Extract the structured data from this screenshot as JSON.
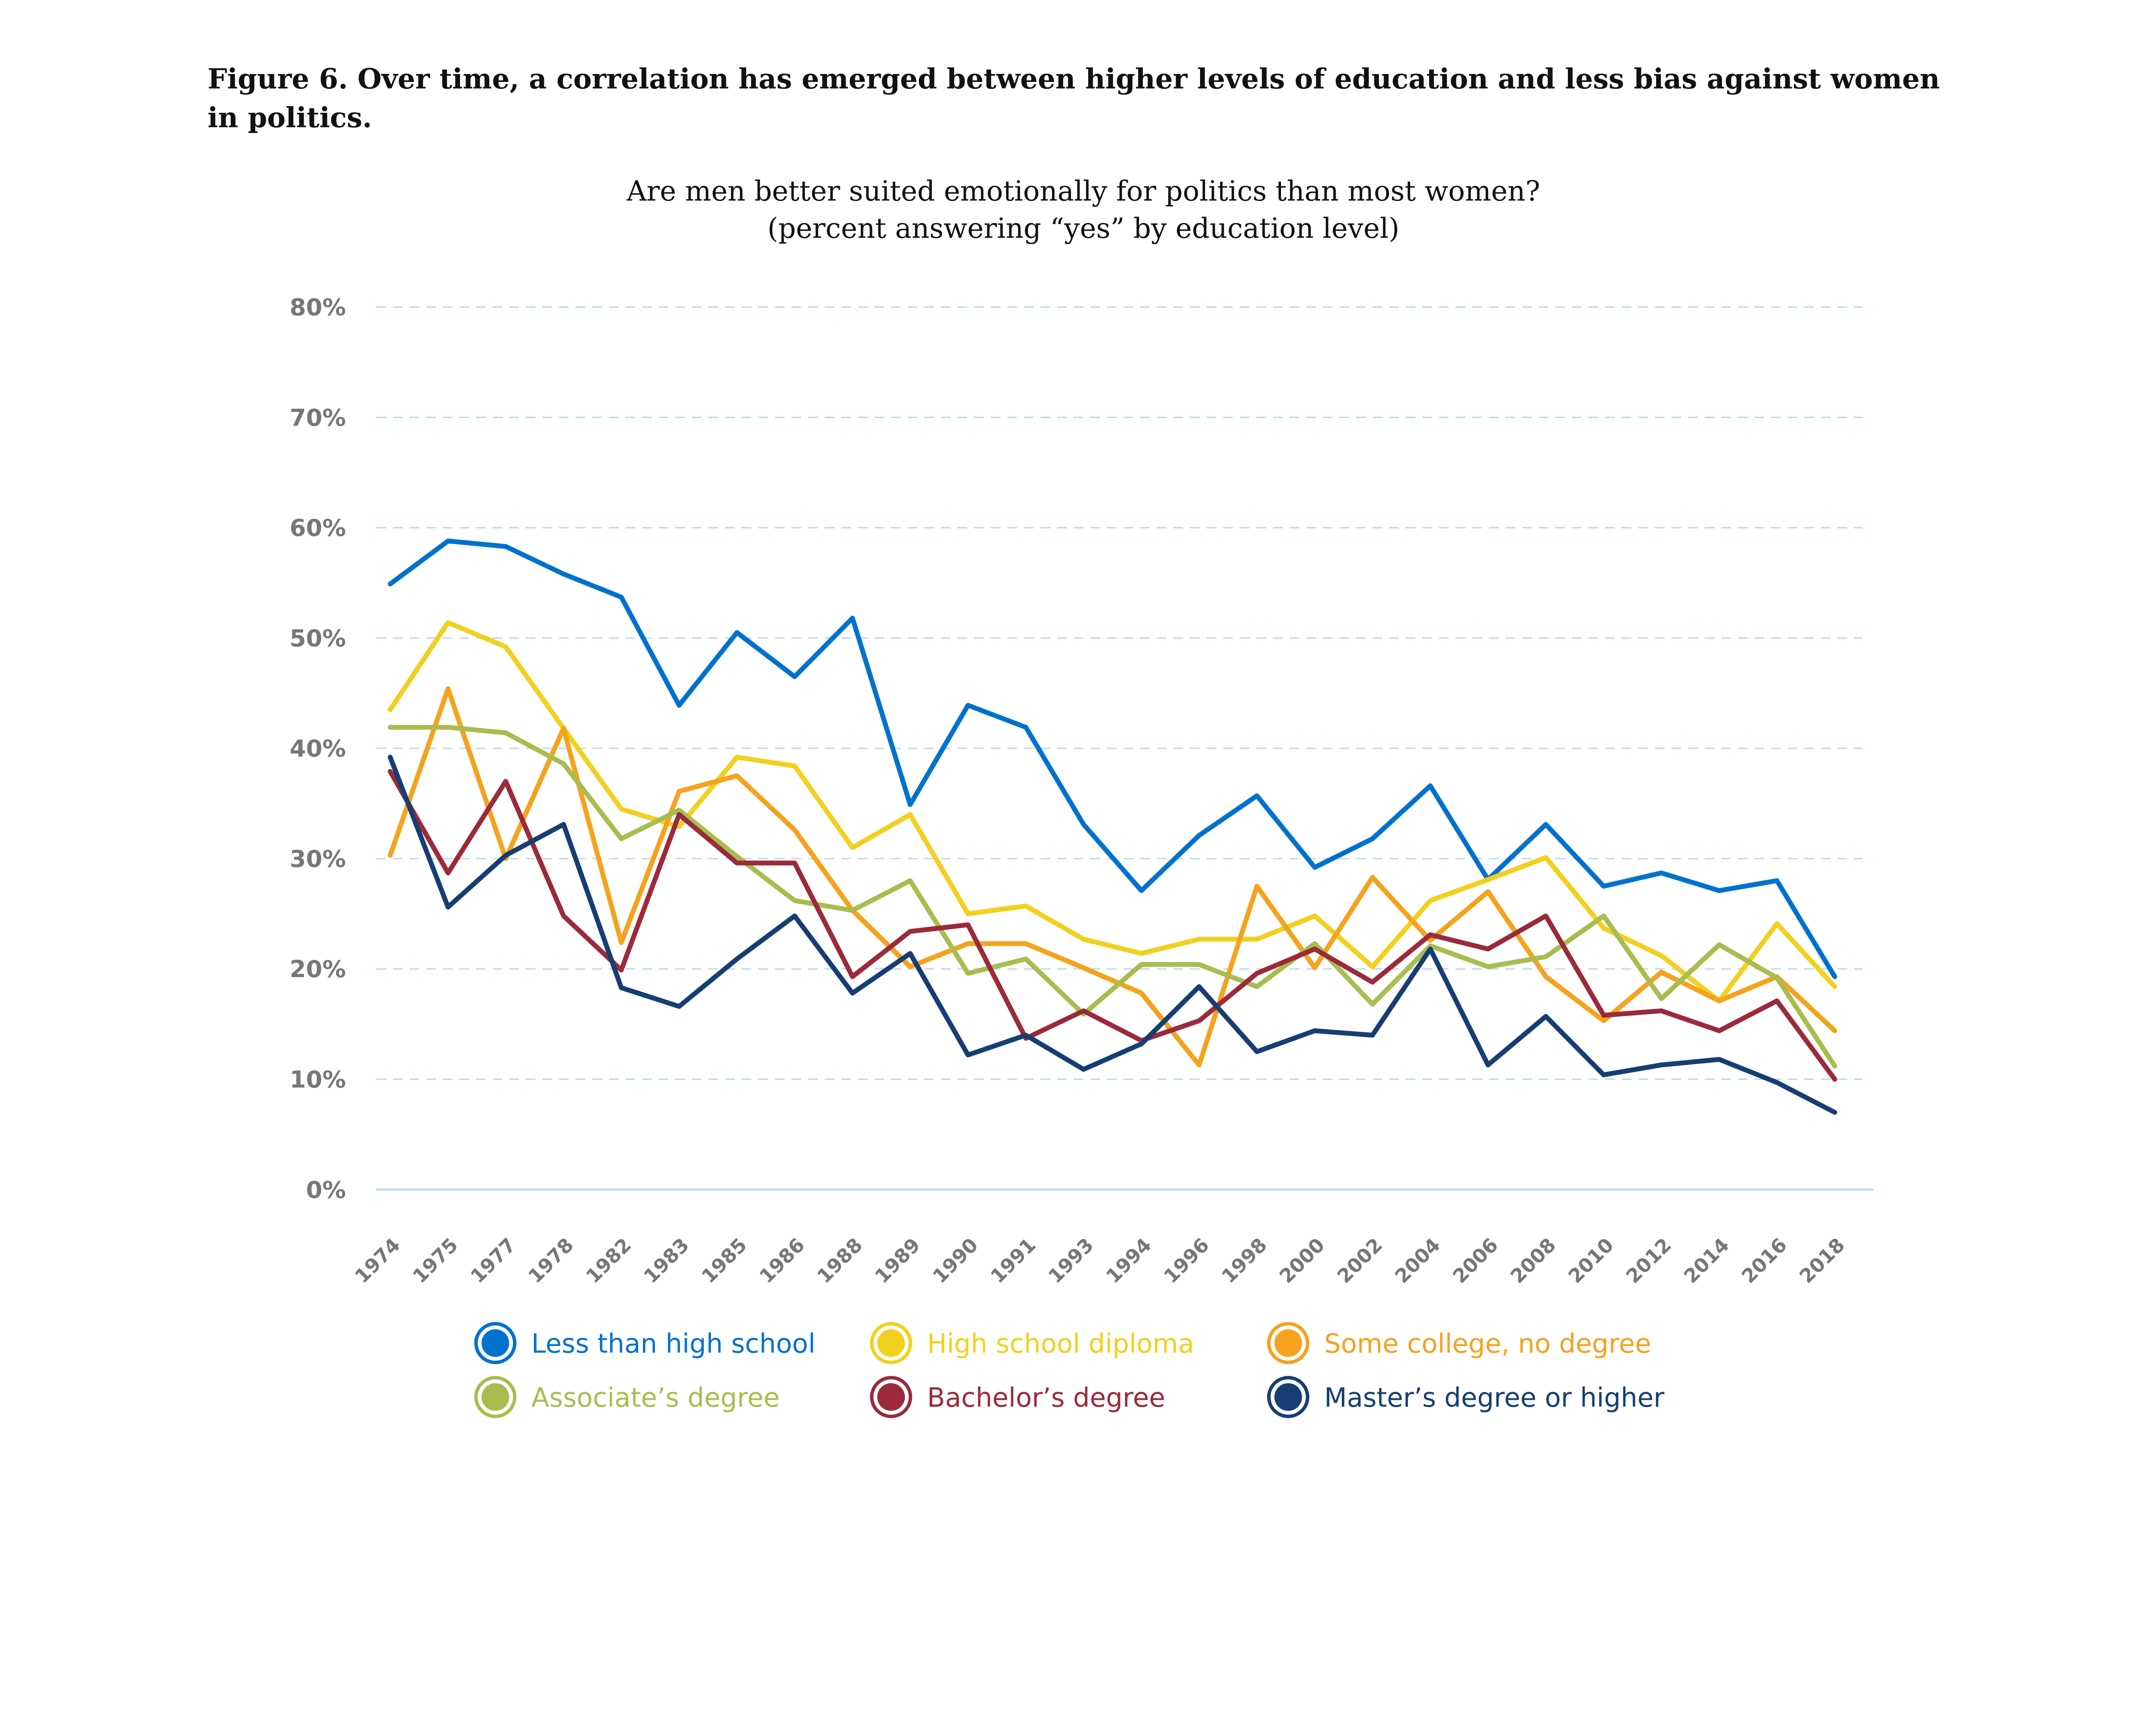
{
  "figure_title_lines": [
    "Figure 6. Over time, a correlation has emerged between higher levels of education and less bias against women",
    "in politics."
  ],
  "chart_data": {
    "type": "line",
    "title": "Are men better suited emotionally for politics than most women?",
    "subtitle": "(percent answering “yes” by education level)",
    "xlabel": "",
    "ylabel": "",
    "ylim": [
      0,
      80
    ],
    "yticks": [
      "0%",
      "10%",
      "20%",
      "30%",
      "40%",
      "50%",
      "60%",
      "70%",
      "80%"
    ],
    "grid": true,
    "legend_position": "bottom",
    "categories": [
      "1974",
      "1975",
      "1977",
      "1978",
      "1982",
      "1983",
      "1985",
      "1986",
      "1988",
      "1989",
      "1990",
      "1991",
      "1993",
      "1994",
      "1996",
      "1998",
      "2000",
      "2002",
      "2004",
      "2006",
      "2008",
      "2010",
      "2012",
      "2014",
      "2016",
      "2018"
    ],
    "series": [
      {
        "name": "Less than high school",
        "color": "#0072CE",
        "values": [
          54.9,
          58.8,
          58.3,
          55.8,
          53.7,
          43.9,
          50.5,
          46.5,
          51.8,
          34.9,
          43.9,
          41.9,
          33.1,
          27.1,
          32.1,
          35.7,
          29.2,
          31.8,
          36.6,
          28.1,
          33.1,
          27.5,
          28.7,
          27.1,
          28.0,
          19.3
        ]
      },
      {
        "name": "High school diploma",
        "color": "#F2D01E",
        "values": [
          43.5,
          51.4,
          49.2,
          41.8,
          34.5,
          32.9,
          39.2,
          38.4,
          31.0,
          34.0,
          25.0,
          25.7,
          22.7,
          21.4,
          22.7,
          22.7,
          24.8,
          20.2,
          26.2,
          28.1,
          30.1,
          23.7,
          21.2,
          17.1,
          24.1,
          18.4
        ]
      },
      {
        "name": "Some college, no degree",
        "color": "#F6A21D",
        "values": [
          30.3,
          45.4,
          30.0,
          41.8,
          22.4,
          36.1,
          37.5,
          32.6,
          25.3,
          20.2,
          22.3,
          22.3,
          20.1,
          17.8,
          11.3,
          27.5,
          20.1,
          28.3,
          22.6,
          27.0,
          19.3,
          15.3,
          19.7,
          17.1,
          19.3,
          14.4
        ]
      },
      {
        "name": "Associate’s degree",
        "color": "#A9BD4F",
        "values": [
          41.9,
          41.9,
          41.4,
          38.6,
          31.8,
          34.4,
          30.2,
          26.2,
          25.3,
          28.0,
          19.6,
          20.9,
          15.9,
          20.4,
          20.4,
          18.4,
          22.3,
          16.8,
          22.1,
          20.2,
          21.1,
          24.8,
          17.3,
          22.2,
          19.2,
          11.2
        ]
      },
      {
        "name": "Bachelor’s degree",
        "color": "#9B2A3A",
        "values": [
          37.9,
          28.7,
          37.0,
          24.8,
          19.9,
          34.0,
          29.6,
          29.6,
          19.3,
          23.4,
          24.0,
          13.7,
          16.2,
          13.5,
          15.3,
          19.6,
          21.8,
          18.8,
          23.1,
          21.8,
          24.8,
          15.8,
          16.2,
          14.4,
          17.1,
          10.0
        ]
      },
      {
        "name": "Master’s degree or higher",
        "color": "#163E73",
        "values": [
          39.2,
          25.6,
          30.3,
          33.1,
          18.3,
          16.6,
          20.9,
          24.8,
          17.8,
          21.4,
          12.2,
          14.0,
          10.9,
          13.2,
          18.4,
          12.5,
          14.4,
          14.0,
          21.8,
          11.3,
          15.7,
          10.4,
          11.3,
          11.8,
          9.7,
          7.0
        ]
      }
    ]
  }
}
